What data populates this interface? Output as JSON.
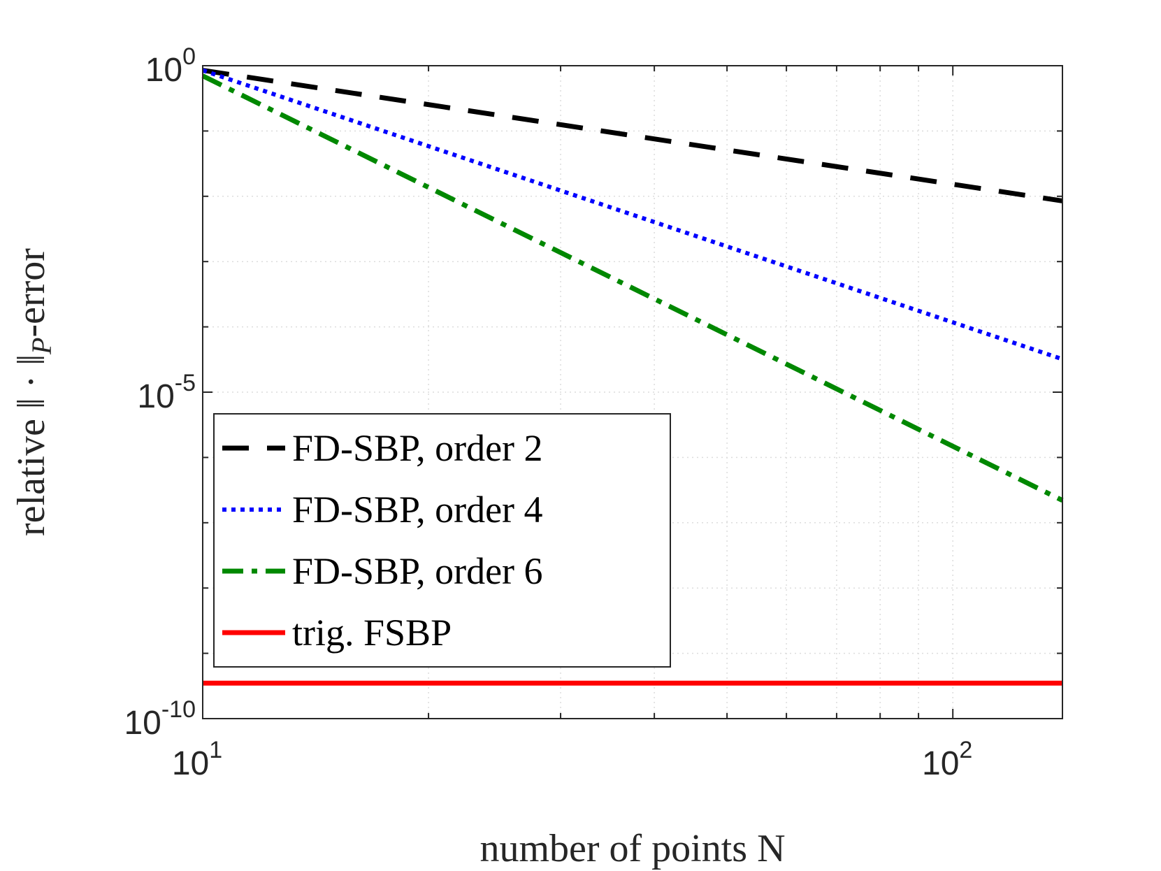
{
  "chart_data": {
    "type": "line",
    "xscale": "log",
    "yscale": "log",
    "xlim": [
      10,
      140
    ],
    "ylim": [
      1e-10,
      1
    ],
    "grid": true,
    "minor_grid": true,
    "legend_placement": "bottom-left",
    "xlabel": "number of points N",
    "ylabel_prefix": "relative ",
    "ylabel_norm": "‖ · ‖",
    "ylabel_sub": "P",
    "ylabel_suffix": "-error",
    "x_ticks": [
      {
        "value": 10,
        "base": "10",
        "exp": "1"
      },
      {
        "value": 100,
        "base": "10",
        "exp": "2"
      }
    ],
    "y_ticks": [
      {
        "value": 1,
        "base": "10",
        "exp": "0"
      },
      {
        "value": 1e-05,
        "base": "10",
        "exp": "-5"
      },
      {
        "value": 1e-10,
        "base": "10",
        "exp": "-10"
      }
    ],
    "series": [
      {
        "name": "FD-SBP, order 2",
        "color": "#000000",
        "style": "dashed",
        "x": [
          10,
          140
        ],
        "y": [
          0.85,
          0.0085
        ]
      },
      {
        "name": "FD-SBP, order 4",
        "color": "#0000ff",
        "style": "dotted",
        "x": [
          10,
          140
        ],
        "y": [
          0.85,
          3.2e-05
        ]
      },
      {
        "name": "FD-SBP, order 6",
        "color": "#008800",
        "style": "dashdot",
        "x": [
          10,
          140
        ],
        "y": [
          0.7,
          2.2e-07
        ]
      },
      {
        "name": "trig. FSBP",
        "color": "#ff0000",
        "style": "solid",
        "x": [
          10,
          140
        ],
        "y": [
          3.5e-10,
          3.5e-10
        ]
      }
    ]
  }
}
